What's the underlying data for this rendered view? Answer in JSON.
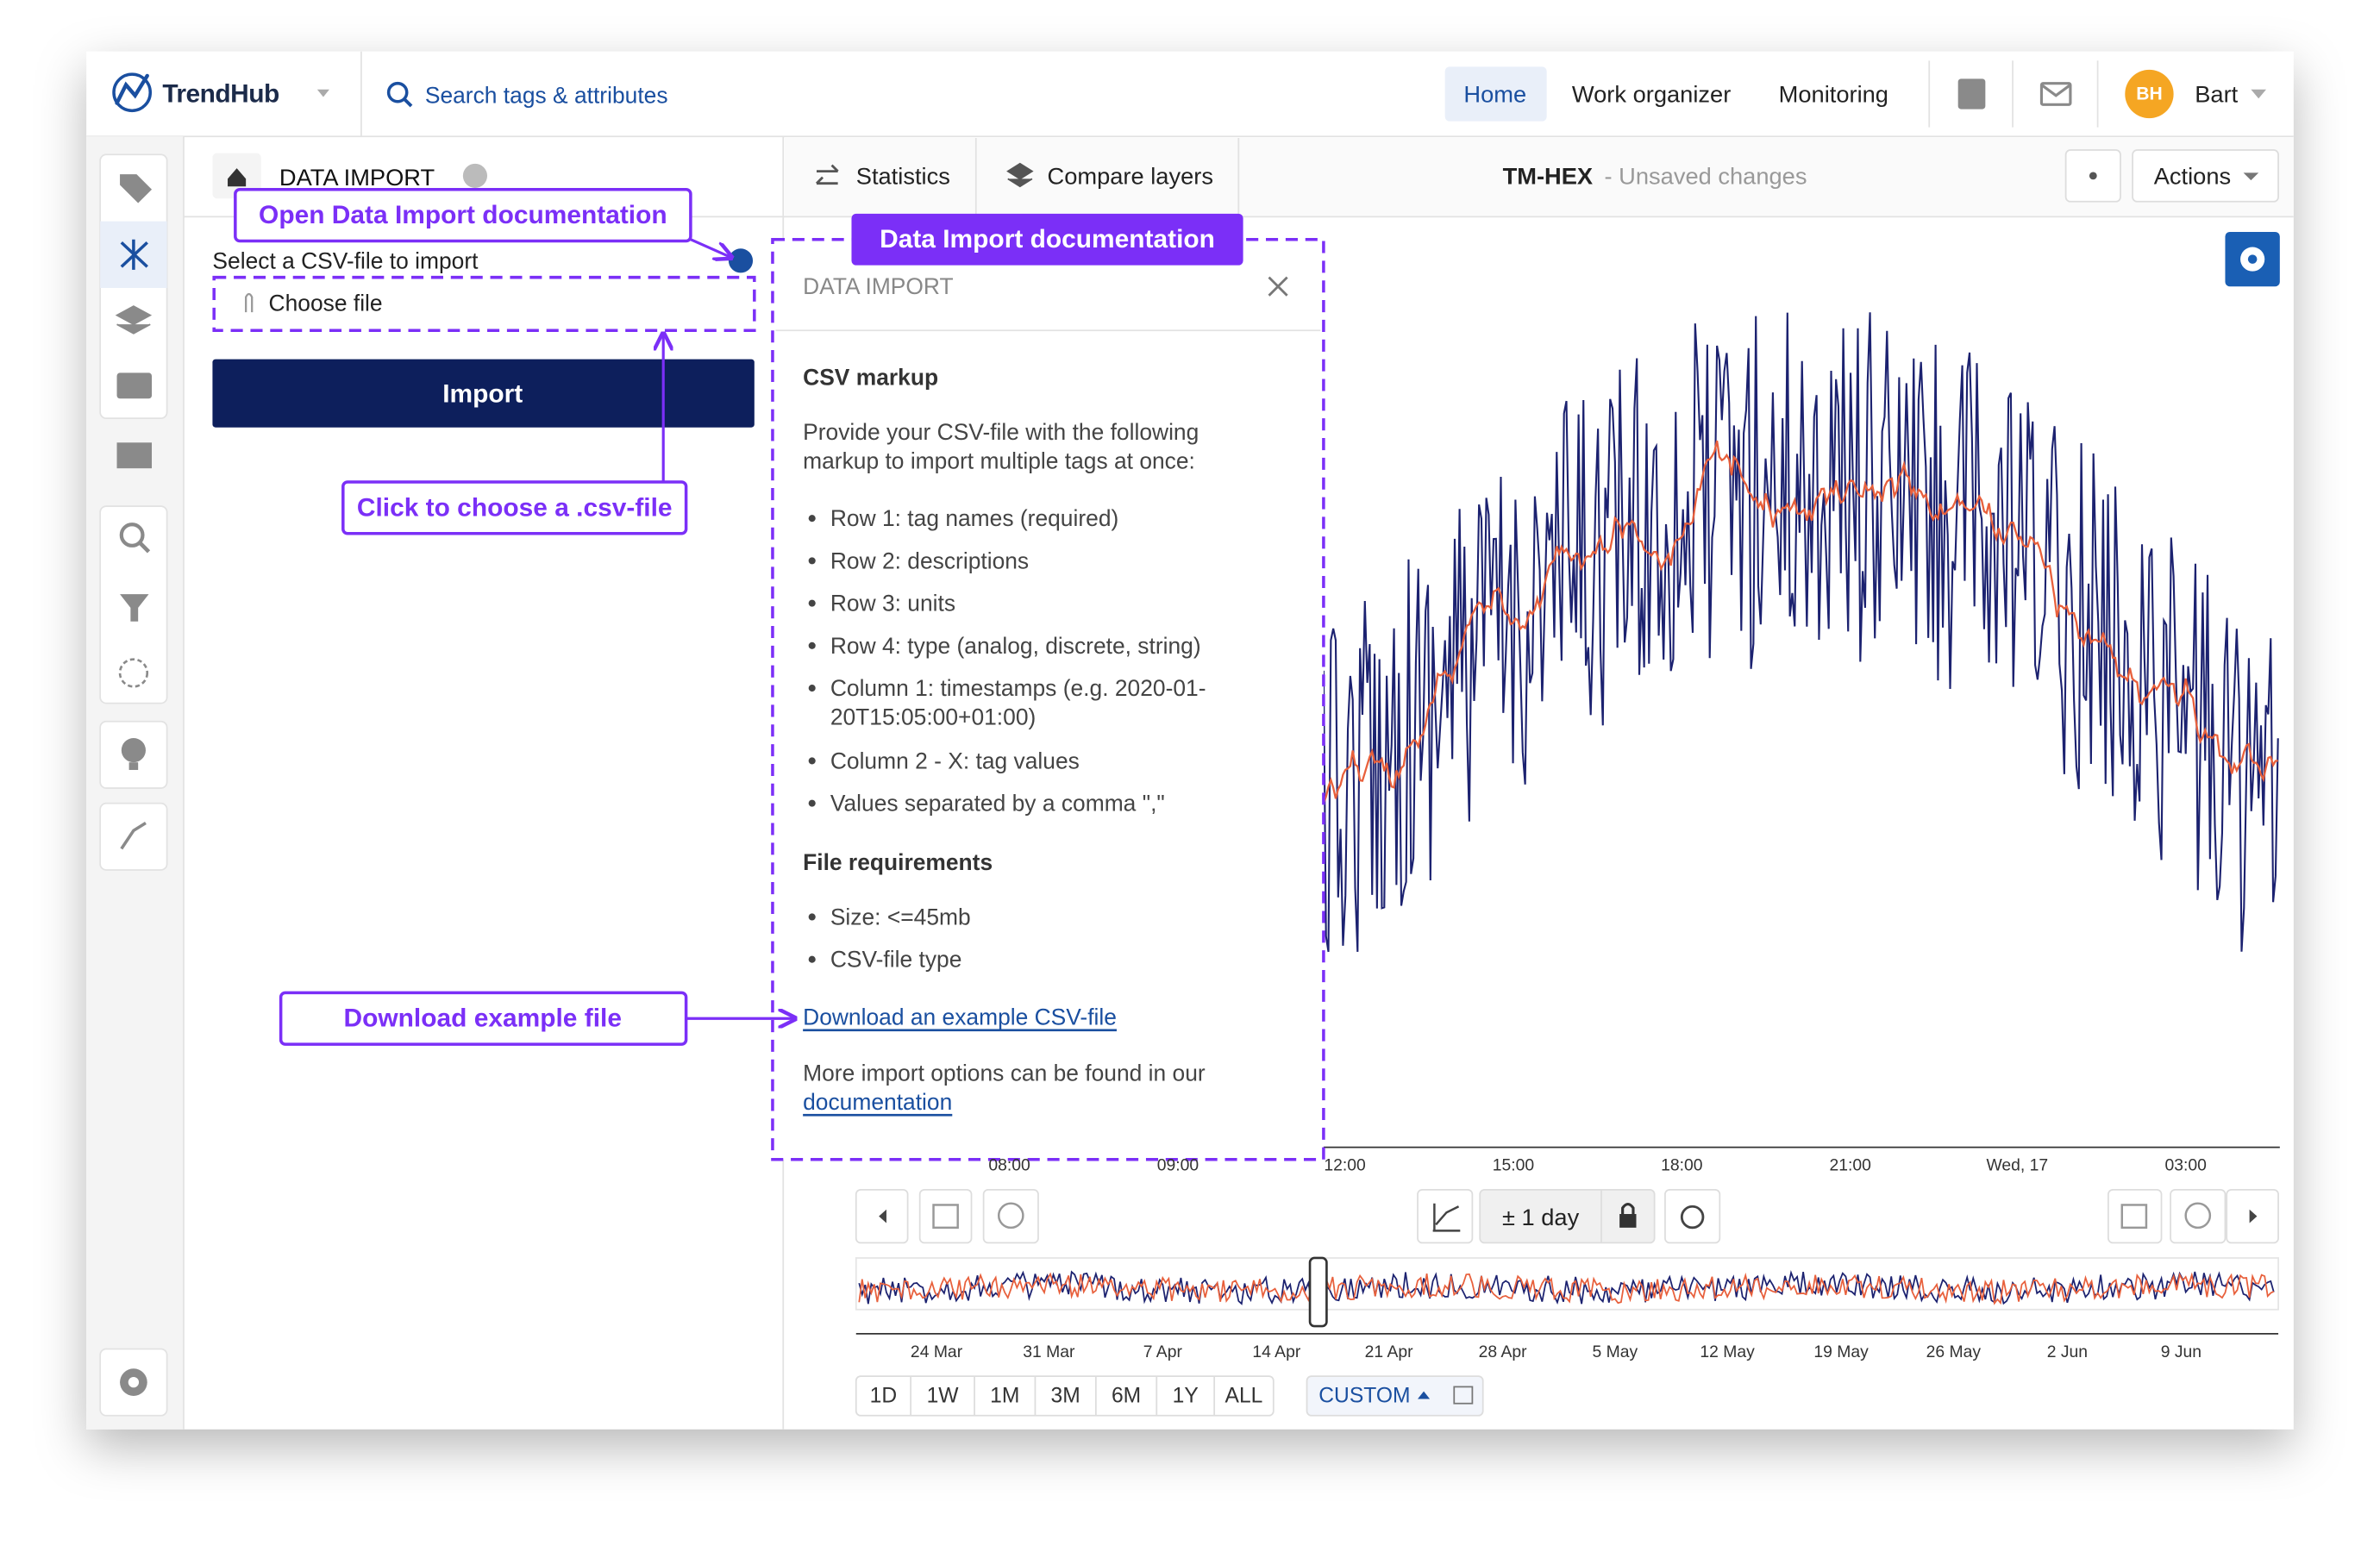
{
  "topbar": {
    "brand": "TrendHub",
    "search": "Search tags & attributes",
    "nav": [
      "Home",
      "Work organizer",
      "Monitoring"
    ],
    "avatar": "BH",
    "user": "Bart"
  },
  "panel": {
    "title": "DATA IMPORT",
    "label": "Select a CSV-file to import",
    "file_button": "Choose file",
    "import_button": "Import"
  },
  "toolbar": {
    "tabs": [
      "Statistics",
      "Compare layers"
    ],
    "view_name": "TM-HEX",
    "view_status": "- Unsaved changes",
    "actions": "Actions"
  },
  "annotations": {
    "open_docs": "Open Data Import documentation",
    "docs_panel": "Data Import documentation",
    "choose_file": "Click to choose a .csv-file",
    "download": "Download example file"
  },
  "doc": {
    "header": "DATA IMPORT",
    "csv_title": "CSV markup",
    "intro": [
      "Provide your CSV-file with the following",
      "markup to import multiple tags at once:"
    ],
    "csv_items": [
      [
        "Row 1: tag names (required)"
      ],
      [
        "Row 2: descriptions"
      ],
      [
        "Row 3: units"
      ],
      [
        "Row 4: type (analog, discrete, string)"
      ],
      [
        "Column 1: timestamps (e.g. 2020-01-",
        "20T15:05:00+01:00)"
      ],
      [
        "Column 2 - X: tag values"
      ],
      [
        "Values separated by a comma \",\""
      ]
    ],
    "file_title": "File requirements",
    "file_items": [
      [
        "Size: <=45mb"
      ],
      [
        "CSV-file type"
      ]
    ],
    "download_link": "Download an example CSV-file",
    "more": "More import options can be found in our",
    "more_link": "documentation"
  },
  "chart": {
    "time_labels": [
      "08:00",
      "09:00",
      "12:00",
      "15:00",
      "18:00",
      "21:00",
      "Wed, 17",
      "03:00"
    ],
    "range": "± 1 day",
    "overview_labels": [
      "24 Mar",
      "31 Mar",
      "7 Apr",
      "14 Apr",
      "21 Apr",
      "28 Apr",
      "5 May",
      "12 May",
      "19 May",
      "26 May",
      "2 Jun",
      "9 Jun"
    ],
    "zoom_buttons": [
      "1D",
      "1W",
      "1M",
      "3M",
      "6M",
      "1Y",
      "ALL"
    ],
    "custom": "CUSTOM"
  }
}
